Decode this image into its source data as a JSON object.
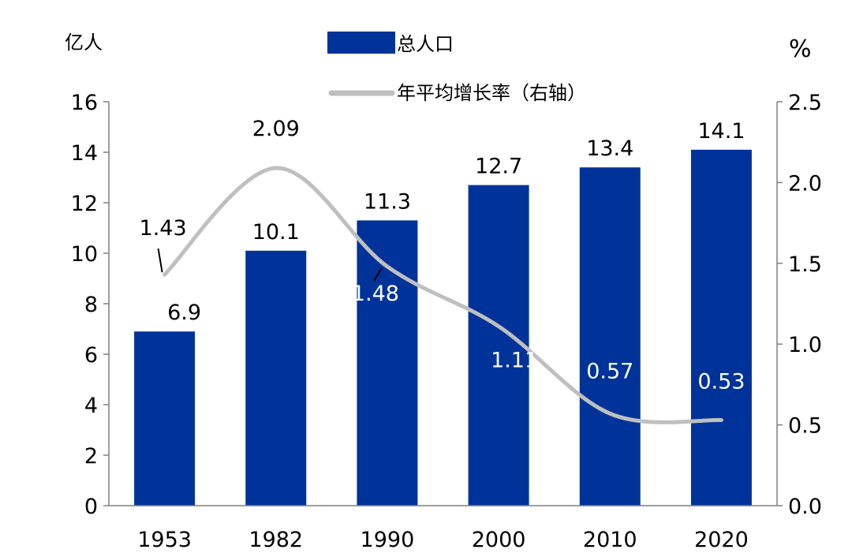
{
  "chart_data": {
    "type": "bar",
    "categories": [
      "1953",
      "1982",
      "1990",
      "2000",
      "2010",
      "2020"
    ],
    "series": [
      {
        "name": "总人口",
        "type": "bar",
        "axis": "left",
        "color": "#003399",
        "values": [
          6.9,
          10.1,
          11.3,
          12.7,
          13.4,
          14.1
        ]
      },
      {
        "name": "年平均增长率（右轴）",
        "type": "line",
        "axis": "right",
        "color": "#bfbfbf",
        "values": [
          1.43,
          2.09,
          1.48,
          1.11,
          0.57,
          0.53
        ]
      }
    ],
    "left_axis": {
      "unit": "亿人",
      "ylim": [
        0,
        16
      ],
      "ticks": [
        "0",
        "2",
        "4",
        "6",
        "8",
        "10",
        "12",
        "14",
        "16"
      ]
    },
    "right_axis": {
      "unit": "%",
      "ylim": [
        0,
        2.5
      ],
      "ticks": [
        "0.0",
        "0.5",
        "1.0",
        "1.5",
        "2.0",
        "2.5"
      ]
    },
    "bar_labels": [
      "6.9",
      "10.1",
      "11.3",
      "12.7",
      "13.4",
      "14.1"
    ],
    "line_labels": [
      "1.43",
      "2.09",
      "1.48",
      "1.11",
      "0.57",
      "0.53"
    ],
    "legend_position": "top-center",
    "grid": false
  }
}
